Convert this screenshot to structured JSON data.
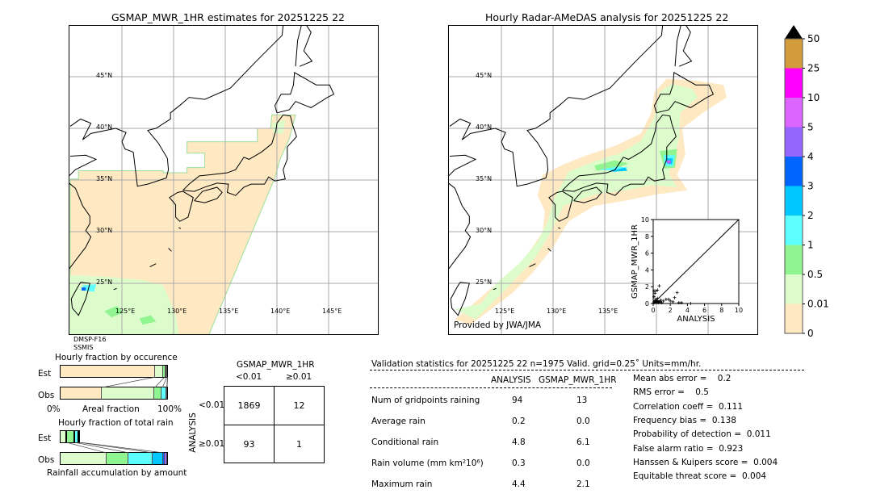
{
  "left_map": {
    "title": "GSMAP_MWR_1HR estimates for 20251225 22",
    "sensor_line1": "DMSP-F16",
    "sensor_line2": "SSMIS",
    "lat_labels": [
      "45°N",
      "40°N",
      "35°N",
      "30°N",
      "25°N"
    ],
    "lon_labels": [
      "125°E",
      "130°E",
      "135°E",
      "140°E",
      "145°E"
    ]
  },
  "right_map": {
    "title": "Hourly Radar-AMeDAS analysis for 20251225 22",
    "credit": "Provided by JWA/JMA",
    "lat_labels": [
      "45°N",
      "40°N",
      "35°N",
      "30°N",
      "25°N"
    ],
    "lon_labels": [
      "125°E",
      "130°E",
      "135°E"
    ]
  },
  "colorbar": {
    "ticks": [
      "0",
      "0.01",
      "0.5",
      "1",
      "2",
      "3",
      "4",
      "5",
      "10",
      "25",
      "50"
    ],
    "colors": [
      "#fee9c2",
      "#dcfdcb",
      "#90f590",
      "#5effff",
      "#00c8ff",
      "#0064ff",
      "#9664ff",
      "#dc64ff",
      "#ff00ff",
      "#d29b3c"
    ],
    "extend_color": "#000000"
  },
  "scatter": {
    "xlabel": "ANALYSIS",
    "ylabel": "GSMAP_MWR_1HR",
    "ticks": [
      "0",
      "2",
      "4",
      "6",
      "8",
      "10"
    ],
    "xlim": [
      0,
      10
    ],
    "ylim": [
      0,
      10
    ],
    "points": [
      [
        0.1,
        0.1
      ],
      [
        0.2,
        0.3
      ],
      [
        0.3,
        0.5
      ],
      [
        0.1,
        0.8
      ],
      [
        0.2,
        1.2
      ],
      [
        0.3,
        1.5
      ],
      [
        0.1,
        1.5
      ],
      [
        0.4,
        0.2
      ],
      [
        0.6,
        0.1
      ],
      [
        0.8,
        0.2
      ],
      [
        1.0,
        0.1
      ],
      [
        1.2,
        0.3
      ],
      [
        1.5,
        0.5
      ],
      [
        1.8,
        0.5
      ],
      [
        2.0,
        0.3
      ],
      [
        2.3,
        0.2
      ],
      [
        2.5,
        0.7
      ],
      [
        2.8,
        1.3
      ],
      [
        0.7,
        2.1
      ],
      [
        0.5,
        1.6
      ],
      [
        3.0,
        0.1
      ],
      [
        3.3,
        0.1
      ],
      [
        4.4,
        0.0
      ],
      [
        0.5,
        0.6
      ],
      [
        0.9,
        0.4
      ]
    ]
  },
  "occurrence": {
    "title": "Hourly fraction by occurence",
    "est_label": "Est",
    "obs_label": "Obs",
    "xlabel": "Areal fraction",
    "x_min": "0%",
    "x_max": "100%",
    "est": [
      89,
      8,
      2,
      0.5,
      0.5
    ],
    "obs": [
      39,
      49,
      7,
      4,
      1
    ]
  },
  "total_rain": {
    "title": "Hourly fraction of total rain",
    "est_label": "Est",
    "obs_label": "Obs",
    "xlabel": "Rainfall accumulation by amount",
    "est": [
      6,
      7.5,
      4,
      1
    ],
    "obs": [
      43,
      21,
      22,
      10,
      1.5,
      2.5
    ]
  },
  "contingency": {
    "col_title": "GSMAP_MWR_1HR",
    "col1": "<0.01",
    "col2": "≥0.01",
    "row_title": "ANALYSIS",
    "row1": "<0.01",
    "row2": "≥0.01",
    "cells": [
      "1869",
      "12",
      "93",
      "1"
    ]
  },
  "stats": {
    "header": "Validation statistics for 20251225 22  n=1975 Valid. grid=0.25˚ Units=mm/hr.",
    "col1": "ANALYSIS",
    "col2": "GSMAP_MWR_1HR",
    "rows": [
      {
        "label": "Num of gridpoints raining",
        "a": "94",
        "g": "13"
      },
      {
        "label": "Average rain",
        "a": "0.2",
        "g": "0.0"
      },
      {
        "label": "Conditional rain",
        "a": "4.8",
        "g": "6.1"
      },
      {
        "label": "Rain volume (mm km²10⁶)",
        "a": "0.3",
        "g": "0.0"
      },
      {
        "label": "Maximum rain",
        "a": "4.4",
        "g": "2.1"
      }
    ],
    "scores": [
      "Mean abs error =    0.2",
      "RMS error =    0.5",
      "Correlation coeff =  0.111",
      "Frequency bias =  0.138",
      "Probability of detection =  0.011",
      "False alarm ratio =  0.923",
      "Hanssen & Kuipers score =  0.004",
      "Equitable threat score =  0.004"
    ]
  }
}
